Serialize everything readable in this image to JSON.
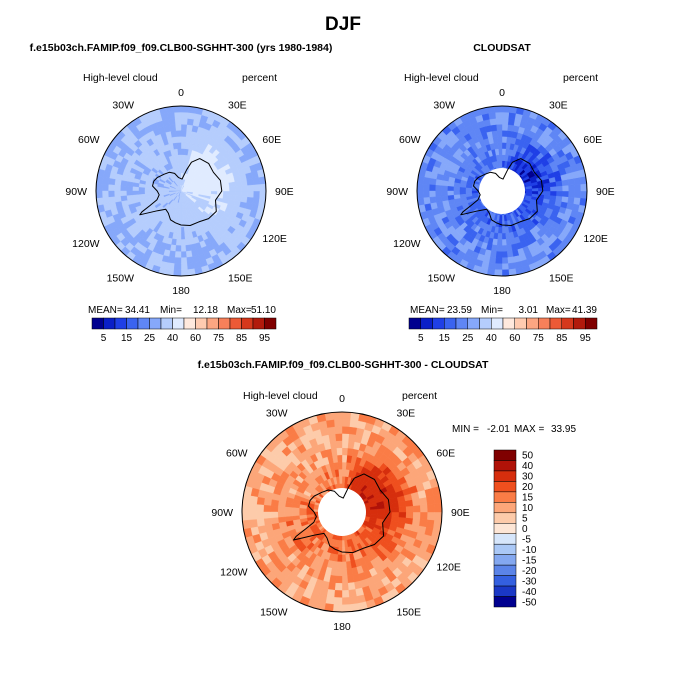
{
  "figure": {
    "season": "DJF"
  },
  "panels": [
    {
      "id": "model",
      "title": "f.e15b03ch.FAMIP.f09_f09.CLB00-SGHHT-300 (yrs 1980-1984)",
      "field_label": "High-level cloud",
      "units": "percent",
      "stats": {
        "mean_label": "MEAN=",
        "mean": "34.41",
        "min_label": "Min=",
        "min": "12.18",
        "max_label": "Max=",
        "max": "51.10"
      },
      "colorbar_ticks": [
        "5",
        "15",
        "25",
        "40",
        "60",
        "75",
        "85",
        "95"
      ]
    },
    {
      "id": "obs",
      "title": "CLOUDSAT",
      "field_label": "High-level cloud",
      "units": "percent",
      "stats": {
        "mean_label": "MEAN=",
        "mean": "23.59",
        "min_label": "Min=",
        "min": "3.01",
        "max_label": "Max=",
        "max": "41.39"
      },
      "colorbar_ticks": [
        "5",
        "15",
        "25",
        "40",
        "60",
        "75",
        "85",
        "95"
      ]
    },
    {
      "id": "diff",
      "title": "f.e15b03ch.FAMIP.f09_f09.CLB00-SGHHT-300 - CLOUDSAT",
      "field_label": "High-level cloud",
      "units": "percent",
      "stats": {
        "min_label": "MIN =",
        "min": "-2.01",
        "max_label": "MAX =",
        "max": "33.95"
      },
      "colorbar_ticks": [
        "50",
        "40",
        "30",
        "20",
        "15",
        "10",
        "5",
        "0",
        "-5",
        "-10",
        "-15",
        "-20",
        "-30",
        "-40",
        "-50"
      ]
    }
  ],
  "longitude_labels": [
    "0",
    "30E",
    "60E",
    "90E",
    "120E",
    "150E",
    "180",
    "150W",
    "120W",
    "90W",
    "60W",
    "30W"
  ],
  "palettes": {
    "absolute": [
      "#00008f",
      "#0a1fc8",
      "#1f3fe6",
      "#3a63f0",
      "#5f86f5",
      "#86a8fa",
      "#b5cdfd",
      "#e0ebff",
      "#ffe9dd",
      "#ffcbb0",
      "#fca682",
      "#f7805a",
      "#ec5a36",
      "#d6381c",
      "#b21a0c",
      "#800000"
    ],
    "difference": [
      "#800000",
      "#b01208",
      "#d62e0d",
      "#ef4f1e",
      "#fa7c46",
      "#fca679",
      "#fdcbaa",
      "#fde6d6",
      "#d6e6fb",
      "#aac8f6",
      "#84a8f0",
      "#5b84e8",
      "#3460e0",
      "#1a38c6",
      "#00008f"
    ]
  },
  "chart_data": [
    {
      "type": "heatmap",
      "projection": "south-polar-stereographic",
      "title": "f.e15b03ch.FAMIP.f09_f09.CLB00-SGHHT-300 (yrs 1980-1984)",
      "variable": "High-level cloud",
      "units": "percent",
      "mean": 34.41,
      "min": 12.18,
      "max": 51.1,
      "color_levels": [
        5,
        10,
        15,
        20,
        25,
        30,
        40,
        50,
        60,
        70,
        75,
        80,
        85,
        90,
        95
      ],
      "colorbar_tick_labels": [
        5,
        15,
        25,
        40,
        60,
        75,
        85,
        95
      ],
      "longitude_labels": [
        "0",
        "30E",
        "60E",
        "90E",
        "120E",
        "150E",
        "180",
        "150W",
        "120W",
        "90W",
        "60W",
        "30W"
      ],
      "field_by_longitude_deg": [
        0,
        30,
        60,
        90,
        120,
        150,
        180,
        210,
        240,
        270,
        300,
        330
      ],
      "field_interior": [
        33,
        35,
        38,
        42,
        45,
        44,
        37,
        34,
        32,
        31,
        30,
        31
      ],
      "field_coast": [
        34,
        35,
        40,
        44,
        47,
        45,
        36,
        33,
        32,
        34,
        35,
        34
      ],
      "field_outer": [
        30,
        30,
        31,
        31,
        31,
        31,
        30,
        30,
        30,
        30,
        30,
        30
      ]
    },
    {
      "type": "heatmap",
      "projection": "south-polar-stereographic",
      "title": "CLOUDSAT",
      "variable": "High-level cloud",
      "units": "percent",
      "mean": 23.59,
      "min": 3.01,
      "max": 41.39,
      "missing_pole": true,
      "color_levels": [
        5,
        10,
        15,
        20,
        25,
        30,
        40,
        50,
        60,
        70,
        75,
        80,
        85,
        90,
        95
      ],
      "colorbar_tick_labels": [
        5,
        15,
        25,
        40,
        60,
        75,
        85,
        95
      ],
      "longitude_labels": [
        "0",
        "30E",
        "60E",
        "90E",
        "120E",
        "150E",
        "180",
        "150W",
        "120W",
        "90W",
        "60W",
        "30W"
      ],
      "field_by_longitude_deg": [
        0,
        30,
        60,
        90,
        120,
        150,
        180,
        210,
        240,
        270,
        300,
        330
      ],
      "field_interior": [
        17,
        16,
        16,
        11,
        5,
        10,
        15,
        17,
        18,
        17,
        18,
        18
      ],
      "field_coast": [
        19,
        18,
        17,
        14,
        9,
        13,
        17,
        19,
        20,
        18,
        19,
        19
      ],
      "field_outer": [
        24,
        24,
        24,
        24,
        23,
        23,
        24,
        24,
        24,
        24,
        24,
        24
      ]
    },
    {
      "type": "heatmap",
      "projection": "south-polar-stereographic",
      "title": "f.e15b03ch.FAMIP.f09_f09.CLB00-SGHHT-300 - CLOUDSAT",
      "variable": "High-level cloud",
      "units": "percent",
      "min": -2.01,
      "max": 33.95,
      "missing_pole": true,
      "color_levels": [
        -50,
        -40,
        -30,
        -20,
        -15,
        -10,
        -5,
        0,
        5,
        10,
        15,
        20,
        30,
        40,
        50
      ],
      "colorbar_tick_labels": [
        50,
        40,
        30,
        20,
        15,
        10,
        5,
        0,
        -5,
        -10,
        -15,
        -20,
        -30,
        -40,
        -50
      ],
      "longitude_labels": [
        "0",
        "30E",
        "60E",
        "90E",
        "120E",
        "150E",
        "180",
        "150W",
        "120W",
        "90W",
        "60W",
        "30W"
      ],
      "field_by_longitude_deg": [
        0,
        30,
        60,
        90,
        120,
        150,
        180,
        210,
        240,
        270,
        300,
        330
      ],
      "field_interior": [
        13,
        15,
        18,
        26,
        31,
        27,
        18,
        14,
        12,
        11,
        11,
        12
      ],
      "field_coast": [
        12,
        14,
        19,
        26,
        29,
        24,
        16,
        12,
        10,
        14,
        16,
        14
      ],
      "field_outer": [
        7,
        7,
        8,
        8,
        8,
        8,
        7,
        7,
        7,
        7,
        7,
        7
      ]
    }
  ]
}
